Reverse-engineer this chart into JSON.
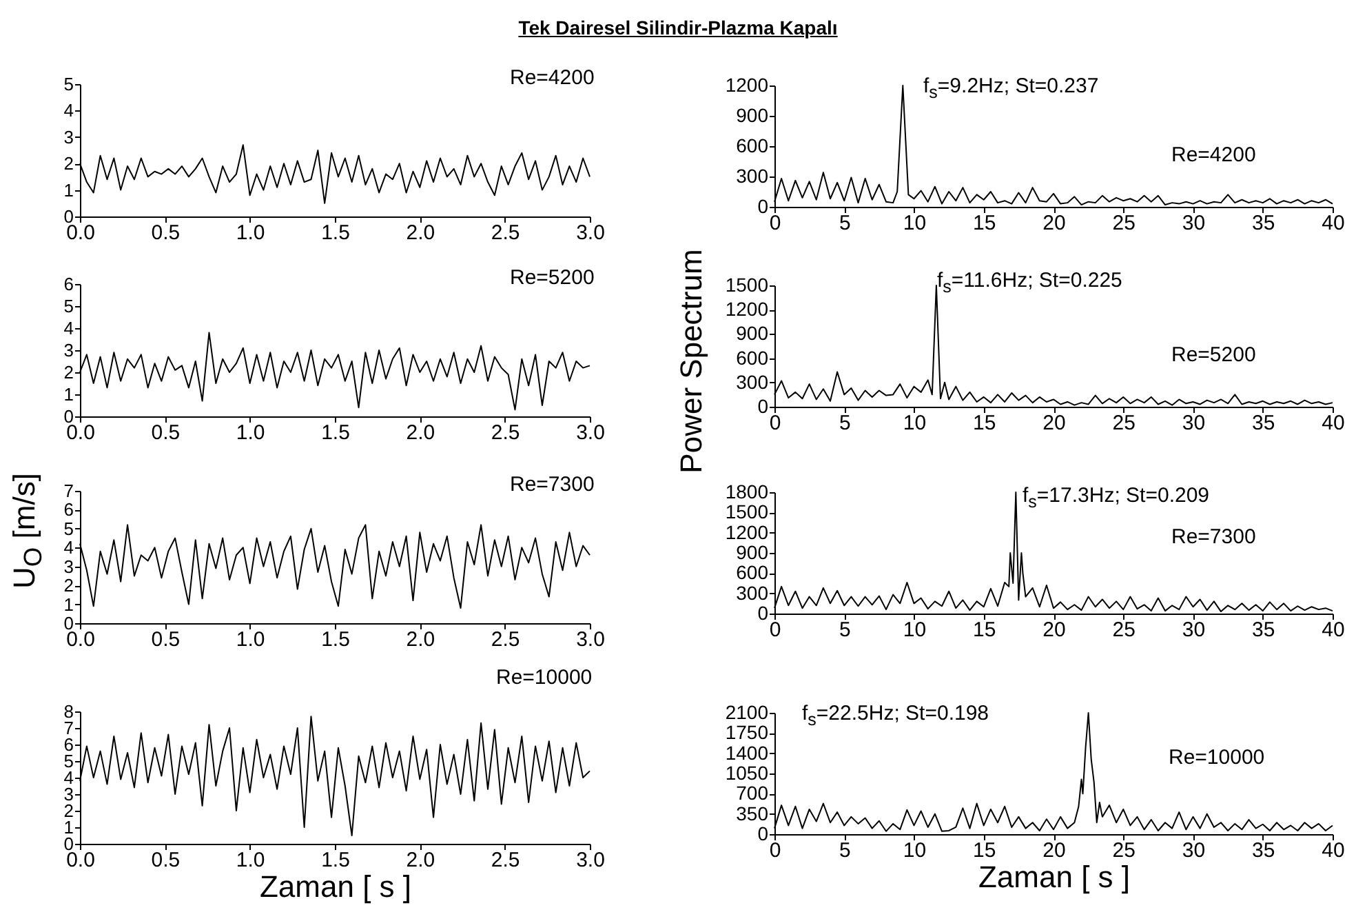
{
  "chart_data": [
    {
      "type": "line",
      "title": "Tek Dairesel Silindir-Plazma Kapalı",
      "annotations": [
        "Re=4200"
      ],
      "color": "#000000",
      "xlim": [
        0,
        3
      ],
      "ylim": [
        0,
        5
      ],
      "xticks": [
        {
          "value": 0,
          "label": "0.0"
        },
        {
          "value": 0.5,
          "label": "0.5"
        },
        {
          "value": 1,
          "label": "1.0"
        },
        {
          "value": 1.5,
          "label": "1.5"
        },
        {
          "value": 2,
          "label": "2.0"
        },
        {
          "value": 2.5,
          "label": "2.5"
        },
        {
          "value": 3,
          "label": "3.0"
        }
      ],
      "yticks": [
        0,
        1,
        2,
        3,
        4,
        5
      ],
      "x": [
        0,
        0.04,
        0.08,
        0.12,
        0.16,
        0.2,
        0.24,
        0.28,
        0.32,
        0.36,
        0.4,
        0.44,
        0.48,
        0.52,
        0.56,
        0.6,
        0.64,
        0.68,
        0.72,
        0.76,
        0.8,
        0.84,
        0.88,
        0.92,
        0.96,
        1,
        1.04,
        1.08,
        1.12,
        1.16,
        1.2,
        1.24,
        1.28,
        1.32,
        1.36,
        1.4,
        1.44,
        1.48,
        1.52,
        1.56,
        1.6,
        1.64,
        1.68,
        1.72,
        1.76,
        1.8,
        1.84,
        1.88,
        1.92,
        1.96,
        2,
        2.04,
        2.08,
        2.12,
        2.16,
        2.2,
        2.24,
        2.28,
        2.32,
        2.36,
        2.4,
        2.44,
        2.48,
        2.52,
        2.56,
        2.6,
        2.64,
        2.68,
        2.72,
        2.76,
        2.8,
        2.84,
        2.88,
        2.92,
        2.96,
        3
      ],
      "values": [
        2.0,
        1.3,
        0.9,
        2.3,
        1.4,
        2.2,
        1.0,
        1.9,
        1.4,
        2.2,
        1.5,
        1.7,
        1.6,
        1.8,
        1.6,
        1.9,
        1.5,
        1.8,
        2.2,
        1.5,
        0.9,
        1.9,
        1.3,
        1.6,
        2.7,
        0.8,
        1.6,
        1.0,
        1.9,
        1.1,
        2.0,
        1.2,
        2.1,
        1.3,
        1.4,
        2.5,
        0.5,
        2.4,
        1.5,
        2.2,
        1.3,
        2.3,
        1.2,
        1.8,
        0.9,
        1.6,
        1.4,
        2.0,
        0.9,
        1.7,
        1.1,
        2.1,
        1.3,
        2.2,
        1.5,
        1.8,
        1.2,
        2.3,
        1.5,
        2.0,
        1.3,
        0.8,
        1.9,
        1.2,
        1.9,
        2.4,
        1.4,
        2.1,
        1.0,
        1.5,
        2.3,
        1.2,
        1.9,
        1.3,
        2.2,
        1.5
      ]
    },
    {
      "type": "line",
      "annotations": [
        "f$_{s}$=9.2Hz; St=0.237",
        "Re=4200"
      ],
      "color": "#000000",
      "xlim": [
        0,
        40
      ],
      "ylim": [
        0,
        1200
      ],
      "xticks": [
        0,
        5,
        10,
        15,
        20,
        25,
        30,
        35,
        40
      ],
      "yticks": [
        0,
        300,
        600,
        900,
        1200
      ],
      "x": [
        0,
        0.5,
        1,
        1.5,
        2,
        2.5,
        3,
        3.5,
        4,
        4.5,
        5,
        5.5,
        6,
        6.5,
        7,
        7.5,
        8,
        8.5,
        8.8,
        9.2,
        9.6,
        10,
        10.5,
        11,
        11.5,
        12,
        12.5,
        13,
        13.5,
        14,
        14.5,
        15,
        15.5,
        16,
        16.5,
        17,
        17.5,
        18,
        18.5,
        19,
        19.5,
        20,
        20.5,
        21,
        21.5,
        22,
        22.5,
        23,
        23.5,
        24,
        24.5,
        25,
        25.5,
        26,
        26.5,
        27,
        27.5,
        28,
        28.5,
        29,
        29.5,
        30,
        30.5,
        31,
        31.5,
        32,
        32.5,
        33,
        33.5,
        34,
        34.5,
        35,
        35.5,
        36,
        36.5,
        37,
        37.5,
        38,
        38.5,
        39,
        39.5,
        40
      ],
      "values": [
        50,
        280,
        60,
        260,
        90,
        250,
        70,
        340,
        80,
        240,
        60,
        290,
        40,
        280,
        70,
        220,
        50,
        40,
        150,
        1200,
        120,
        80,
        160,
        50,
        200,
        30,
        150,
        60,
        190,
        40,
        120,
        70,
        150,
        40,
        60,
        30,
        140,
        40,
        190,
        60,
        50,
        130,
        30,
        40,
        100,
        20,
        50,
        40,
        110,
        50,
        90,
        60,
        80,
        50,
        110,
        50,
        110,
        20,
        40,
        30,
        50,
        30,
        60,
        30,
        50,
        40,
        120,
        40,
        70,
        40,
        60,
        40,
        80,
        30,
        60,
        40,
        70,
        30,
        60,
        40,
        70,
        30
      ]
    },
    {
      "type": "line",
      "annotations": [
        "Re=5200"
      ],
      "color": "#000000",
      "xlim": [
        0,
        3
      ],
      "ylim": [
        0,
        6
      ],
      "xticks": [
        {
          "value": 0,
          "label": "0.0"
        },
        {
          "value": 0.5,
          "label": "0.5"
        },
        {
          "value": 1,
          "label": "1.0"
        },
        {
          "value": 1.5,
          "label": "1.5"
        },
        {
          "value": 2,
          "label": "2.0"
        },
        {
          "value": 2.5,
          "label": "2.5"
        },
        {
          "value": 3,
          "label": "3.0"
        }
      ],
      "yticks": [
        0,
        1,
        2,
        3,
        4,
        5,
        6
      ],
      "x": [
        0,
        0.04,
        0.08,
        0.12,
        0.16,
        0.2,
        0.24,
        0.28,
        0.32,
        0.36,
        0.4,
        0.44,
        0.48,
        0.52,
        0.56,
        0.6,
        0.64,
        0.68,
        0.72,
        0.76,
        0.8,
        0.84,
        0.88,
        0.92,
        0.96,
        1,
        1.04,
        1.08,
        1.12,
        1.16,
        1.2,
        1.24,
        1.28,
        1.32,
        1.36,
        1.4,
        1.44,
        1.48,
        1.52,
        1.56,
        1.6,
        1.64,
        1.68,
        1.72,
        1.76,
        1.8,
        1.84,
        1.88,
        1.92,
        1.96,
        2,
        2.04,
        2.08,
        2.12,
        2.16,
        2.2,
        2.24,
        2.28,
        2.32,
        2.36,
        2.4,
        2.44,
        2.48,
        2.52,
        2.56,
        2.6,
        2.64,
        2.68,
        2.72,
        2.76,
        2.8,
        2.84,
        2.88,
        2.92,
        2.96,
        3
      ],
      "values": [
        2.0,
        2.8,
        1.5,
        2.7,
        1.3,
        2.9,
        1.6,
        2.6,
        2.2,
        2.8,
        1.3,
        2.4,
        1.6,
        2.7,
        2.1,
        2.3,
        1.3,
        2.5,
        0.7,
        3.8,
        1.5,
        2.6,
        2.0,
        2.4,
        3.1,
        1.5,
        2.8,
        1.6,
        2.9,
        1.3,
        2.5,
        2.0,
        2.9,
        1.6,
        3.0,
        1.4,
        2.6,
        2.2,
        2.8,
        1.6,
        2.5,
        0.4,
        2.9,
        1.5,
        3.0,
        1.7,
        2.6,
        3.1,
        1.4,
        2.8,
        2.0,
        2.5,
        1.6,
        2.6,
        1.8,
        2.9,
        1.5,
        2.6,
        2.0,
        3.2,
        1.6,
        2.7,
        2.2,
        1.9,
        0.3,
        2.6,
        1.4,
        2.8,
        0.5,
        2.5,
        2.2,
        2.9,
        1.6,
        2.5,
        2.2,
        2.3
      ]
    },
    {
      "type": "line",
      "ylabel": "Power Spectrum",
      "annotations": [
        "f$_{s}$=11.6Hz; St=0.225",
        "Re=5200"
      ],
      "color": "#000000",
      "xlim": [
        0,
        40
      ],
      "ylim": [
        0,
        1500
      ],
      "xticks": [
        0,
        5,
        10,
        15,
        20,
        25,
        30,
        35,
        40
      ],
      "yticks": [
        0,
        300,
        600,
        900,
        1200,
        1500
      ],
      "x": [
        0,
        0.5,
        1,
        1.5,
        2,
        2.5,
        3,
        3.5,
        4,
        4.5,
        5,
        5.5,
        6,
        6.5,
        7,
        7.5,
        8,
        8.5,
        9,
        9.5,
        10,
        10.5,
        11,
        11.3,
        11.6,
        11.9,
        12.2,
        12.5,
        13,
        13.5,
        14,
        14.5,
        15,
        15.5,
        16,
        16.5,
        17,
        17.5,
        18,
        18.5,
        19,
        19.5,
        20,
        20.5,
        21,
        21.5,
        22,
        22.5,
        23,
        23.5,
        24,
        24.5,
        25,
        25.5,
        26,
        26.5,
        27,
        27.5,
        28,
        28.5,
        29,
        29.5,
        30,
        30.5,
        31,
        31.5,
        32,
        32.5,
        33,
        33.5,
        34,
        34.5,
        35,
        35.5,
        36,
        36.5,
        37,
        37.5,
        38,
        38.5,
        39,
        39.5,
        40
      ],
      "values": [
        150,
        320,
        110,
        180,
        100,
        280,
        90,
        220,
        70,
        430,
        150,
        230,
        80,
        200,
        120,
        200,
        140,
        150,
        280,
        110,
        250,
        180,
        330,
        150,
        1500,
        100,
        300,
        90,
        250,
        80,
        180,
        60,
        120,
        50,
        150,
        60,
        170,
        80,
        140,
        50,
        120,
        60,
        90,
        30,
        60,
        20,
        50,
        30,
        140,
        40,
        100,
        50,
        120,
        40,
        90,
        50,
        120,
        30,
        70,
        20,
        90,
        40,
        60,
        30,
        80,
        50,
        90,
        40,
        150,
        30,
        60,
        40,
        70,
        30,
        60,
        40,
        70,
        30,
        80,
        40,
        60,
        30,
        50
      ]
    },
    {
      "type": "line",
      "ylabel": "U$_{O}$ [m/s]",
      "annotations": [
        "Re=7300"
      ],
      "color": "#000000",
      "xlim": [
        0,
        3
      ],
      "ylim": [
        0,
        7
      ],
      "xticks": [
        {
          "value": 0,
          "label": "0.0"
        },
        {
          "value": 0.5,
          "label": "0.5"
        },
        {
          "value": 1,
          "label": "1.0"
        },
        {
          "value": 1.5,
          "label": "1.5"
        },
        {
          "value": 2,
          "label": "2.0"
        },
        {
          "value": 2.5,
          "label": "2.5"
        },
        {
          "value": 3,
          "label": "3.0"
        }
      ],
      "yticks": [
        0,
        1,
        2,
        3,
        4,
        5,
        6,
        7
      ],
      "x": [
        0,
        0.04,
        0.08,
        0.12,
        0.16,
        0.2,
        0.24,
        0.28,
        0.32,
        0.36,
        0.4,
        0.44,
        0.48,
        0.52,
        0.56,
        0.6,
        0.64,
        0.68,
        0.72,
        0.76,
        0.8,
        0.84,
        0.88,
        0.92,
        0.96,
        1,
        1.04,
        1.08,
        1.12,
        1.16,
        1.2,
        1.24,
        1.28,
        1.32,
        1.36,
        1.4,
        1.44,
        1.48,
        1.52,
        1.56,
        1.6,
        1.64,
        1.68,
        1.72,
        1.76,
        1.8,
        1.84,
        1.88,
        1.92,
        1.96,
        2,
        2.04,
        2.08,
        2.12,
        2.16,
        2.2,
        2.24,
        2.28,
        2.32,
        2.36,
        2.4,
        2.44,
        2.48,
        2.52,
        2.56,
        2.6,
        2.64,
        2.68,
        2.72,
        2.76,
        2.8,
        2.84,
        2.88,
        2.92,
        2.96,
        3
      ],
      "values": [
        4.2,
        2.8,
        0.9,
        3.8,
        2.6,
        4.4,
        2.2,
        5.2,
        2.5,
        3.6,
        3.3,
        4.0,
        2.4,
        3.8,
        4.5,
        2.7,
        1.0,
        4.4,
        1.3,
        4.2,
        2.9,
        4.5,
        2.3,
        3.6,
        4.0,
        2.1,
        4.5,
        3.0,
        4.3,
        2.4,
        3.8,
        4.6,
        1.8,
        3.9,
        5.0,
        2.7,
        4.1,
        2.2,
        0.9,
        3.9,
        2.6,
        4.5,
        5.2,
        1.3,
        3.8,
        2.5,
        4.3,
        3.0,
        4.6,
        1.2,
        4.8,
        2.7,
        4.2,
        3.3,
        4.6,
        2.4,
        0.8,
        4.3,
        3.1,
        5.2,
        2.5,
        4.4,
        3.0,
        4.6,
        2.3,
        4.0,
        3.2,
        4.5,
        2.6,
        1.4,
        4.3,
        2.8,
        4.8,
        3.0,
        4.1,
        3.6
      ]
    },
    {
      "type": "line",
      "annotations": [
        "f$_{s}$=17.3Hz; St=0.209",
        "Re=7300"
      ],
      "color": "#000000",
      "xlim": [
        0,
        40
      ],
      "ylim": [
        0,
        1800
      ],
      "xticks": [
        0,
        5,
        10,
        15,
        20,
        25,
        30,
        35,
        40
      ],
      "yticks": [
        0,
        300,
        600,
        900,
        1200,
        1500,
        1800
      ],
      "x": [
        0,
        0.5,
        1,
        1.5,
        2,
        2.5,
        3,
        3.5,
        4,
        4.5,
        5,
        5.5,
        6,
        6.5,
        7,
        7.5,
        8,
        8.5,
        9,
        9.5,
        10,
        10.5,
        11,
        11.5,
        12,
        12.5,
        13,
        13.5,
        14,
        14.5,
        15,
        15.5,
        16,
        16.5,
        16.8,
        16.9,
        17.1,
        17.3,
        17.5,
        17.7,
        17.8,
        18,
        18.5,
        19,
        19.5,
        20,
        20.5,
        21,
        21.5,
        22,
        22.5,
        23,
        23.5,
        24,
        24.5,
        25,
        25.5,
        26,
        26.5,
        27,
        27.5,
        28,
        28.5,
        29,
        29.5,
        30,
        30.5,
        31,
        31.5,
        32,
        32.5,
        33,
        33.5,
        34,
        34.5,
        35,
        35.5,
        36,
        36.5,
        37,
        37.5,
        38,
        38.5,
        39,
        39.5,
        40
      ],
      "values": [
        80,
        400,
        120,
        330,
        80,
        250,
        120,
        380,
        150,
        340,
        120,
        250,
        110,
        250,
        130,
        260,
        60,
        280,
        150,
        460,
        150,
        230,
        70,
        180,
        110,
        330,
        80,
        200,
        50,
        180,
        100,
        370,
        110,
        460,
        400,
        900,
        450,
        1800,
        200,
        900,
        600,
        250,
        380,
        100,
        420,
        80,
        170,
        60,
        130,
        50,
        250,
        100,
        210,
        80,
        180,
        60,
        250,
        70,
        130,
        40,
        230,
        40,
        120,
        60,
        250,
        100,
        210,
        50,
        180,
        30,
        120,
        60,
        150,
        50,
        130,
        40,
        170,
        60,
        150,
        40,
        110,
        50,
        100,
        60,
        80,
        40
      ]
    },
    {
      "type": "line",
      "xlabel": "Zaman [ s ]",
      "annotations": [
        "Re=10000"
      ],
      "color": "#000000",
      "xlim": [
        0,
        3
      ],
      "ylim": [
        0,
        8
      ],
      "xticks": [
        {
          "value": 0,
          "label": "0.0"
        },
        {
          "value": 0.5,
          "label": "0.5"
        },
        {
          "value": 1,
          "label": "1.0"
        },
        {
          "value": 1.5,
          "label": "1.5"
        },
        {
          "value": 2,
          "label": "2.0"
        },
        {
          "value": 2.5,
          "label": "2.5"
        },
        {
          "value": 3,
          "label": "3.0"
        }
      ],
      "yticks": [
        0,
        1,
        2,
        3,
        4,
        5,
        6,
        7,
        8
      ],
      "x": [
        0,
        0.04,
        0.08,
        0.12,
        0.16,
        0.2,
        0.24,
        0.28,
        0.32,
        0.36,
        0.4,
        0.44,
        0.48,
        0.52,
        0.56,
        0.6,
        0.64,
        0.68,
        0.72,
        0.76,
        0.8,
        0.84,
        0.88,
        0.92,
        0.96,
        1,
        1.04,
        1.08,
        1.12,
        1.16,
        1.2,
        1.24,
        1.28,
        1.32,
        1.36,
        1.4,
        1.44,
        1.48,
        1.52,
        1.56,
        1.6,
        1.64,
        1.68,
        1.72,
        1.76,
        1.8,
        1.84,
        1.88,
        1.92,
        1.96,
        2,
        2.04,
        2.08,
        2.12,
        2.16,
        2.2,
        2.24,
        2.28,
        2.32,
        2.36,
        2.4,
        2.44,
        2.48,
        2.52,
        2.56,
        2.6,
        2.64,
        2.68,
        2.72,
        2.76,
        2.8,
        2.84,
        2.88,
        2.92,
        2.96,
        3
      ],
      "values": [
        3.8,
        5.9,
        4.0,
        5.6,
        3.6,
        6.5,
        3.9,
        5.5,
        3.4,
        6.7,
        3.7,
        5.8,
        4.1,
        6.6,
        3.0,
        5.9,
        4.2,
        6.1,
        2.3,
        7.2,
        3.5,
        5.6,
        7.0,
        2.0,
        5.8,
        3.1,
        6.3,
        4.0,
        5.4,
        3.3,
        5.9,
        4.2,
        7.0,
        1.0,
        7.7,
        3.8,
        5.6,
        1.6,
        5.8,
        3.5,
        0.5,
        5.3,
        3.7,
        5.9,
        3.4,
        6.1,
        4.0,
        5.6,
        3.2,
        6.5,
        3.9,
        5.7,
        1.6,
        6.0,
        3.6,
        5.4,
        3.0,
        6.3,
        2.6,
        7.3,
        3.3,
        6.9,
        2.4,
        5.8,
        3.7,
        6.5,
        2.5,
        5.9,
        3.8,
        6.2,
        3.1,
        5.8,
        3.5,
        6.1,
        4.0,
        4.4
      ]
    },
    {
      "type": "line",
      "xlabel": "Zaman [ s ]",
      "annotations": [
        "f$_{s}$=22.5Hz; St=0.198",
        "Re=10000"
      ],
      "color": "#000000",
      "xlim": [
        0,
        40
      ],
      "ylim": [
        0,
        2100
      ],
      "xticks": [
        0,
        5,
        10,
        15,
        20,
        25,
        30,
        35,
        40
      ],
      "yticks": [
        0,
        350,
        700,
        1050,
        1400,
        1750,
        2100
      ],
      "x": [
        0,
        0.5,
        1,
        1.5,
        2,
        2.5,
        3,
        3.5,
        4,
        4.5,
        5,
        5.5,
        6,
        6.5,
        7,
        7.5,
        8,
        8.5,
        9,
        9.5,
        10,
        10.5,
        11,
        11.5,
        12,
        12.5,
        13,
        13.5,
        14,
        14.5,
        15,
        15.5,
        16,
        16.5,
        17,
        17.5,
        18,
        18.5,
        19,
        19.5,
        20,
        20.5,
        21,
        21.5,
        21.8,
        22,
        22.1,
        22.3,
        22.5,
        22.7,
        22.9,
        23.1,
        23.3,
        23.5,
        24,
        24.5,
        25,
        25.5,
        26,
        26.5,
        27,
        27.5,
        28,
        28.5,
        29,
        29.5,
        30,
        30.5,
        31,
        31.5,
        32,
        32.5,
        33,
        33.5,
        34,
        34.5,
        35,
        35.5,
        36,
        36.5,
        37,
        37.5,
        38,
        38.5,
        39,
        39.5,
        40
      ],
      "values": [
        100,
        500,
        150,
        480,
        100,
        430,
        220,
        530,
        200,
        380,
        150,
        300,
        180,
        280,
        100,
        230,
        50,
        180,
        80,
        420,
        150,
        400,
        120,
        350,
        50,
        60,
        120,
        450,
        100,
        530,
        150,
        430,
        200,
        480,
        120,
        300,
        100,
        200,
        60,
        260,
        80,
        300,
        100,
        200,
        480,
        950,
        700,
        1500,
        2100,
        1300,
        900,
        200,
        550,
        300,
        500,
        200,
        430,
        150,
        300,
        80,
        250,
        60,
        200,
        100,
        380,
        80,
        300,
        100,
        350,
        120,
        200,
        60,
        180,
        80,
        250,
        100,
        170,
        60,
        200,
        80,
        150,
        60,
        200,
        100,
        180,
        60,
        150
      ]
    }
  ]
}
